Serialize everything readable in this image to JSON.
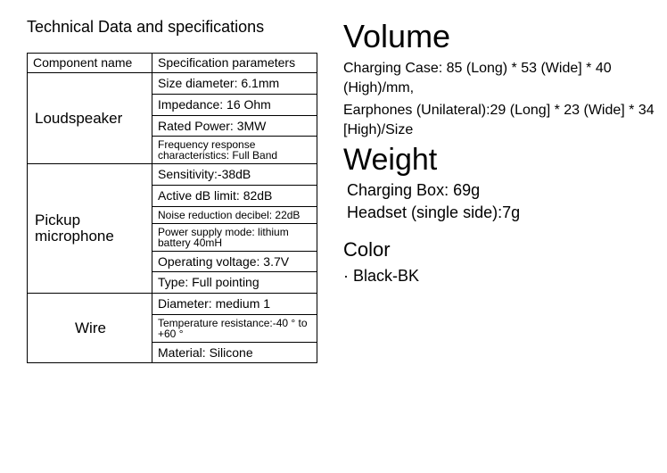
{
  "left": {
    "title": "Technical Data and specifications",
    "header_col1": "Component name",
    "header_col2": "Specification parameters",
    "components": {
      "loudspeaker": {
        "name": "Loudspeaker",
        "specs": [
          "Size diameter: 6.1mm",
          "Impedance: 16 Ohm",
          "Rated Power: 3MW",
          "Frequency response characteristics: Full Band"
        ]
      },
      "mic": {
        "name": "Pickup microphone",
        "specs": [
          "Sensitivity:-38dB",
          "Active dB limit: 82dB",
          "Noise reduction decibel: 22dB",
          "Power supply mode: lithium battery 40mH",
          "Operating voltage: 3.7V",
          "Type: Full pointing"
        ]
      },
      "wire": {
        "name": "Wire",
        "specs": [
          "Diameter: medium 1",
          "Temperature resistance:-40 ° to +60 °",
          "Material: Silicone"
        ]
      }
    }
  },
  "right": {
    "volume_heading": "Volume",
    "volume_text1": "Charging Case: 85 (Long) * 53 (Wide] * 40 (High)/mm,",
    "volume_text2": "Earphones (Unilateral):29 (Long] * 23 (Wide] * 34 [High)/Size",
    "weight_heading": "Weight",
    "weight_box": "Charging Box: 69g",
    "weight_headset": "Headset (single side):7g",
    "color_heading": "Color",
    "color_item": "· Black-BK"
  }
}
